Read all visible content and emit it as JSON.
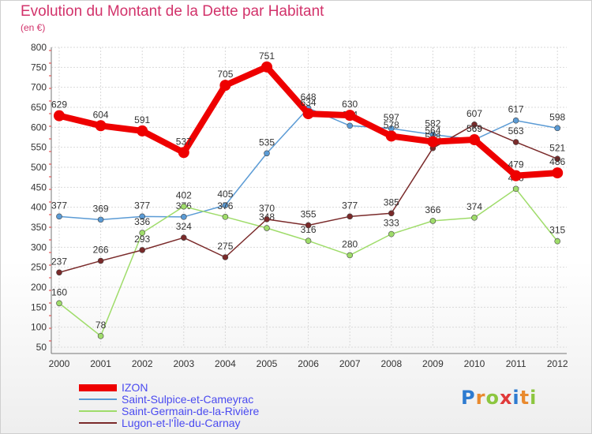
{
  "title": "Evolution du Montant de la Dette par Habitant",
  "unit": "(en €)",
  "chart_data": {
    "type": "line",
    "title": "Evolution du Montant de la Dette par Habitant",
    "ylabel": "(en €)",
    "xlabel": "",
    "ylim": [
      50,
      800
    ],
    "y_ticks": [
      "50",
      "100",
      "150",
      "200",
      "250",
      "300",
      "350",
      "400",
      "450",
      "500",
      "550",
      "600",
      "650",
      "700",
      "750",
      "800"
    ],
    "categories": [
      "2000",
      "2001",
      "2002",
      "2003",
      "2004",
      "2005",
      "2006",
      "2007",
      "2008",
      "2009",
      "2010",
      "2011",
      "2012"
    ],
    "grid": true,
    "legend": "bottom-left",
    "series": [
      {
        "name": "Saint-Sulpice-et-Cameyrac",
        "color": "#5b9bd5",
        "values": [
          377,
          369,
          377,
          376,
          405,
          535,
          648,
          604,
          597,
          582,
          569,
          617,
          598
        ],
        "labels": [
          "377",
          "369",
          "377",
          "376",
          "405",
          "535",
          "648",
          "604",
          "597",
          "582",
          "569",
          "617",
          "598"
        ]
      },
      {
        "name": "Saint-Germain-de-la-Rivière",
        "color": "#9fdc6a",
        "values": [
          160,
          78,
          336,
          402,
          376,
          348,
          316,
          280,
          333,
          366,
          374,
          446,
          315
        ],
        "labels": [
          "160",
          "78",
          "336",
          "402",
          "376",
          "348",
          "316",
          "280",
          "333",
          "366",
          "374",
          "446",
          "315"
        ]
      },
      {
        "name": "Lugon-et-l'Île-du-Carnay",
        "color": "#7a2a2a",
        "values": [
          237,
          266,
          293,
          324,
          275,
          370,
          355,
          377,
          385,
          548,
          607,
          563,
          521
        ],
        "labels": [
          "237",
          "266",
          "293",
          "324",
          "275",
          "370",
          "355",
          "377",
          "385",
          "548",
          "607",
          "563",
          "521"
        ]
      },
      {
        "name": "IZON",
        "color": "#ee0000",
        "values": [
          629,
          604,
          591,
          537,
          705,
          751,
          634,
          630,
          578,
          564,
          569,
          479,
          486
        ],
        "labels": [
          "629",
          "604",
          "591",
          "537",
          "705",
          "751",
          "634",
          "630",
          "578",
          "564",
          "569",
          "479",
          "486"
        ]
      }
    ]
  },
  "legend_items": [
    {
      "label": "IZON",
      "color": "#ee0000"
    },
    {
      "label": "Saint-Sulpice-et-Cameyrac",
      "color": "#5b9bd5"
    },
    {
      "label": "Saint-Germain-de-la-Rivière",
      "color": "#9fdc6a"
    },
    {
      "label": "Lugon-et-l'Île-du-Carnay",
      "color": "#7a2a2a"
    }
  ],
  "legend_text_color": "#4a4af0",
  "logo": {
    "letters": [
      "P",
      "r",
      "o",
      "x",
      "i",
      "t",
      "i"
    ],
    "colors": [
      "#2e7bd0",
      "#e98a2e",
      "#8cc63f",
      "#e03a3a",
      "#2e7bd0",
      "#e98a2e",
      "#8cc63f"
    ]
  }
}
